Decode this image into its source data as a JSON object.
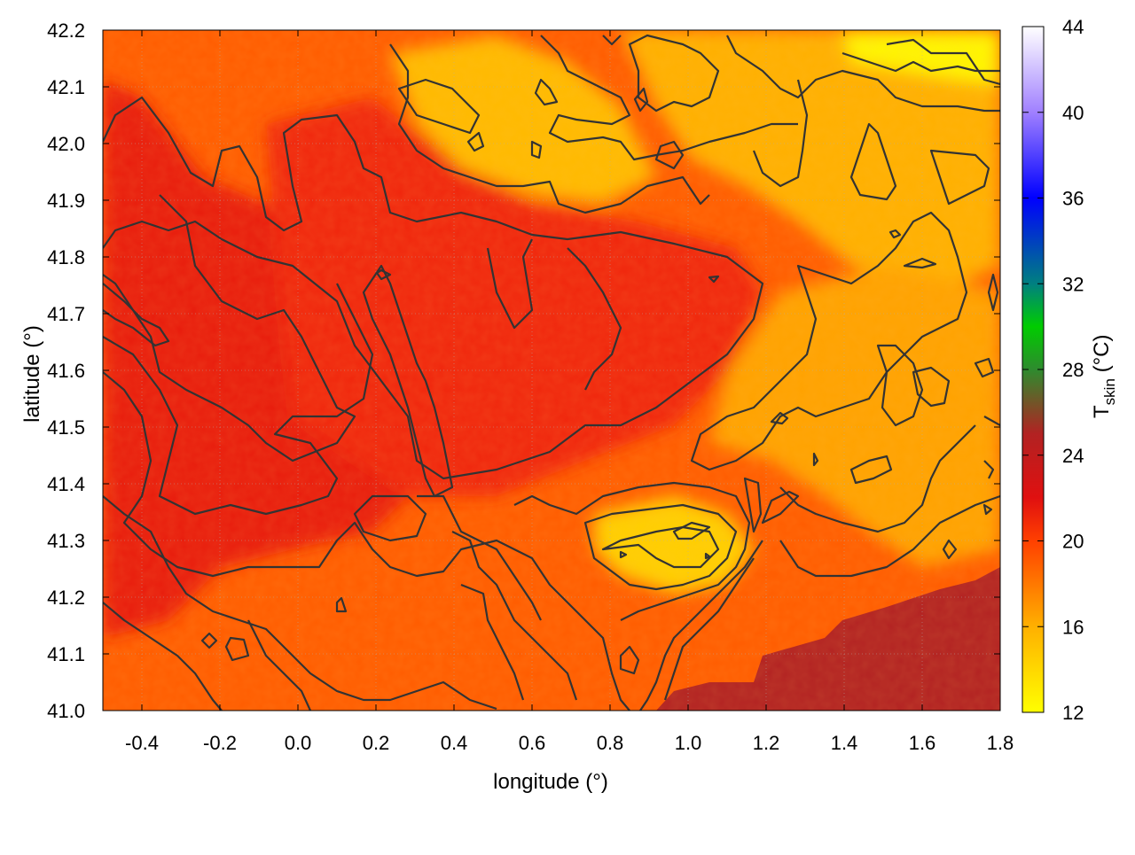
{
  "chart_data": {
    "type": "heatmap",
    "title": "",
    "xlabel": "longitude (°)",
    "ylabel": "latitude (°)",
    "xlim": [
      -0.5,
      1.8
    ],
    "ylim": [
      41.0,
      42.2
    ],
    "x_ticks": [
      "-0.4",
      "-0.2",
      "0.0",
      "0.2",
      "0.4",
      "0.6",
      "0.8",
      "1.0",
      "1.2",
      "1.4",
      "1.6",
      "1.8"
    ],
    "x_tick_values": [
      -0.4,
      -0.2,
      0.0,
      0.2,
      0.4,
      0.6,
      0.8,
      1.0,
      1.2,
      1.4,
      1.6,
      1.8
    ],
    "y_ticks": [
      "41.0",
      "41.1",
      "41.2",
      "41.3",
      "41.4",
      "41.5",
      "41.6",
      "41.7",
      "41.8",
      "41.9",
      "42.0",
      "42.1",
      "42.2"
    ],
    "y_tick_values": [
      41.0,
      41.1,
      41.2,
      41.3,
      41.4,
      41.5,
      41.6,
      41.7,
      41.8,
      41.9,
      42.0,
      42.1,
      42.2
    ],
    "grid": true,
    "colorbar": {
      "label_main": "T",
      "label_sub": "skin",
      "label_unit": " (°C)",
      "range": [
        12,
        44
      ],
      "ticks": [
        "12",
        "16",
        "20",
        "24",
        "28",
        "32",
        "36",
        "40",
        "44"
      ],
      "tick_values": [
        12,
        16,
        20,
        24,
        28,
        32,
        36,
        40,
        44
      ],
      "stops": [
        {
          "value": 12,
          "color": "#ffff00"
        },
        {
          "value": 16,
          "color": "#ffb000"
        },
        {
          "value": 20,
          "color": "#ff4000"
        },
        {
          "value": 22,
          "color": "#e01010"
        },
        {
          "value": 25,
          "color": "#b22222"
        },
        {
          "value": 28,
          "color": "#2e8b2e"
        },
        {
          "value": 30,
          "color": "#00cc00"
        },
        {
          "value": 32,
          "color": "#008080"
        },
        {
          "value": 36,
          "color": "#0000ff"
        },
        {
          "value": 40,
          "color": "#a080ff"
        },
        {
          "value": 44,
          "color": "#ffffff"
        }
      ]
    },
    "field_regions": [
      {
        "name": "background",
        "temp": 19.0
      },
      {
        "name": "western-warm-core",
        "temp": 21.5
      },
      {
        "name": "central-warm-tongue",
        "temp": 21.0
      },
      {
        "name": "northeast-cool",
        "temp": 16.0
      },
      {
        "name": "northeast-coldest-corner",
        "temp": 12.5
      },
      {
        "name": "north-central-cool",
        "temp": 15.5
      },
      {
        "name": "east-cool",
        "temp": 16.5
      },
      {
        "name": "south-central-cool-patch",
        "temp": 14.5
      },
      {
        "name": "southeast-sea",
        "temp": 25.0
      }
    ],
    "contour_color": "#333333"
  }
}
